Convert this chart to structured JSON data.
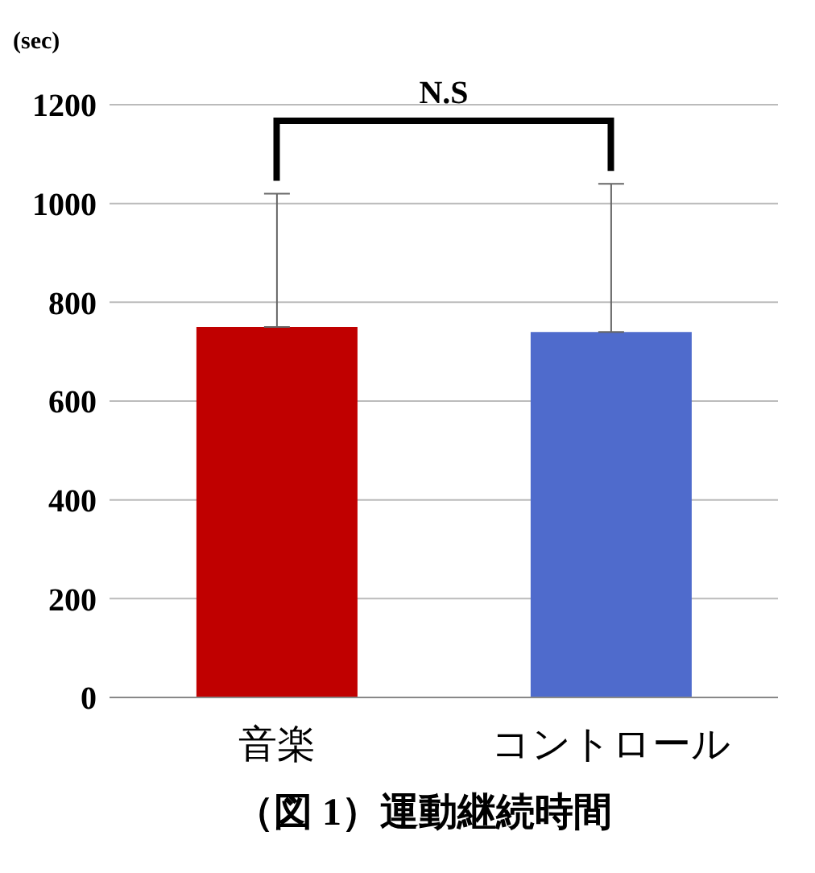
{
  "chart_data": {
    "type": "bar",
    "ylabel": "(sec)",
    "categories": [
      "音楽",
      "コントロール"
    ],
    "values": [
      750,
      740
    ],
    "colors": [
      "#c00000",
      "#4f6bcc"
    ],
    "errors": [
      [
        750,
        1020
      ],
      [
        740,
        1040
      ]
    ],
    "ylim": [
      0,
      1200
    ],
    "yticks": [
      0,
      200,
      400,
      600,
      800,
      1000,
      1200
    ],
    "grid": "y",
    "annotations": [
      "N.S",
      "（図 1）運動継続時間"
    ]
  }
}
